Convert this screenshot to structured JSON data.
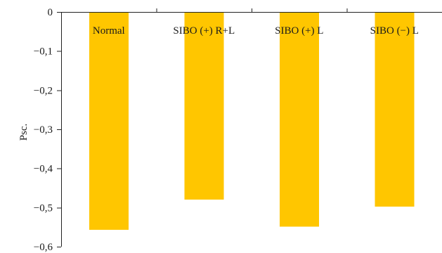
{
  "chart_data": {
    "type": "bar",
    "categories": [
      "Normal",
      "SIBO (+) R+L",
      "SIBO (+) L",
      "SIBO (−) L"
    ],
    "values": [
      -0.557,
      -0.48,
      -0.549,
      -0.498
    ],
    "title": "",
    "xlabel": "",
    "ylabel": "Psc.",
    "ylim": [
      -0.6,
      0
    ],
    "yticks": [
      0,
      -0.1,
      -0.2,
      -0.3,
      -0.4,
      -0.5,
      -0.6
    ],
    "ytick_labels": [
      "0",
      "−0,1",
      "−0,2",
      "−0,3",
      "−0,4",
      "−0,5",
      "−0,6"
    ],
    "category_labels_position": "top",
    "grid": false,
    "legend": "none",
    "bar_color": "#FFC600",
    "axis_color": "#222222"
  }
}
